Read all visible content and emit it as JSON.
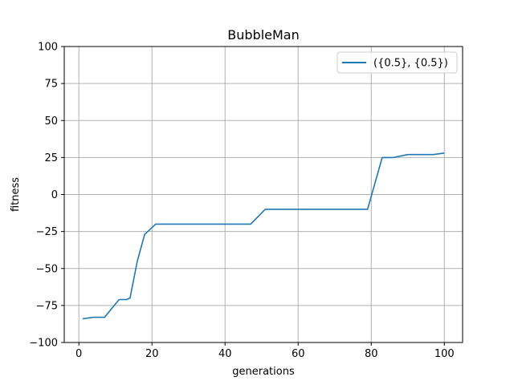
{
  "chart_data": {
    "type": "line",
    "title": "BubbleMan",
    "xlabel": "generations",
    "ylabel": "fitness",
    "xlim": [
      -4,
      105
    ],
    "ylim": [
      -100,
      100
    ],
    "xticks": [
      0,
      20,
      40,
      60,
      80,
      100
    ],
    "yticks": [
      -100,
      -75,
      -50,
      -25,
      0,
      25,
      50,
      75,
      100
    ],
    "xtick_labels": [
      "0",
      "20",
      "40",
      "60",
      "80",
      "100"
    ],
    "ytick_labels": [
      "−100",
      "−75",
      "−50",
      "−25",
      "0",
      "25",
      "50",
      "75",
      "100"
    ],
    "grid": true,
    "legend_position": "top-right",
    "series": [
      {
        "name": "({0.5}, {0.5})",
        "color": "#1f77b4",
        "x": [
          1,
          4,
          7,
          11,
          13,
          14,
          16,
          18,
          21,
          30,
          40,
          47,
          51,
          60,
          70,
          79,
          83,
          86,
          90,
          97,
          100
        ],
        "y": [
          -84,
          -83,
          -83,
          -71,
          -71,
          -70,
          -45,
          -27,
          -20,
          -20,
          -20,
          -20,
          -10,
          -10,
          -10,
          -10,
          25,
          25,
          27,
          27,
          28
        ]
      }
    ]
  }
}
